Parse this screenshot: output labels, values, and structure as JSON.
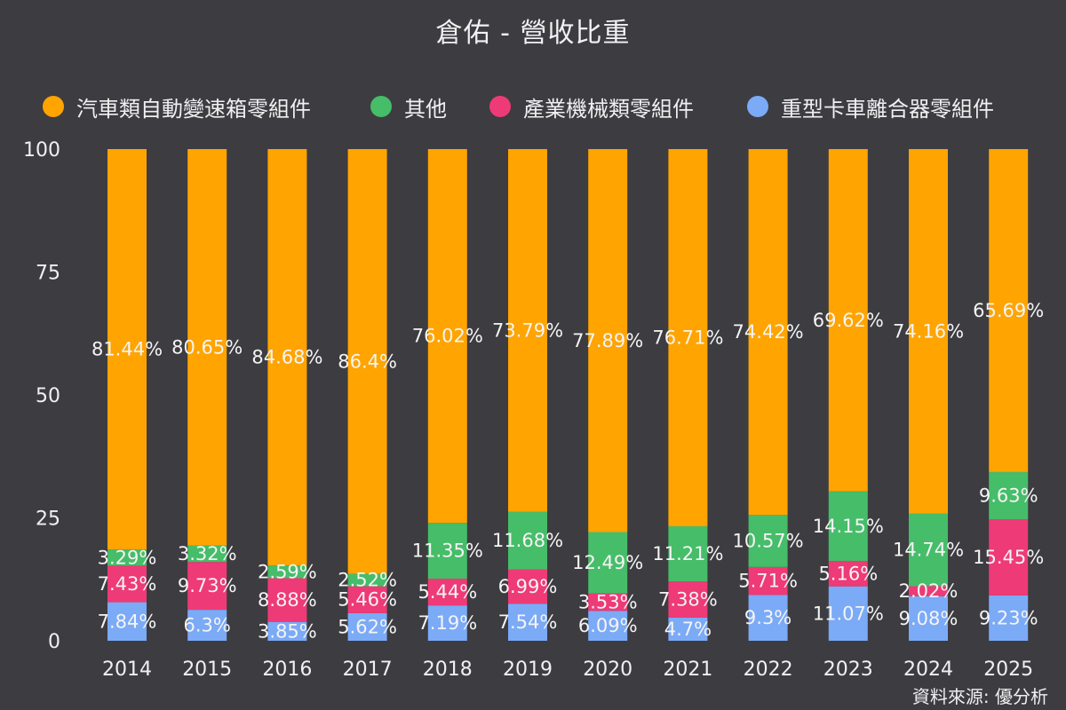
{
  "chart_data": {
    "type": "bar",
    "stacked": true,
    "title": "倉佑 - 營收比重",
    "xlabel": "",
    "ylabel": "",
    "ylim": [
      0,
      100
    ],
    "yticks": [
      0,
      25,
      50,
      75,
      100
    ],
    "grid": false,
    "legend_position": "top",
    "categories": [
      "2014",
      "2015",
      "2016",
      "2017",
      "2018",
      "2019",
      "2020",
      "2021",
      "2022",
      "2023",
      "2024",
      "2025"
    ],
    "series": [
      {
        "name": "重型卡車離合器零組件",
        "color": "#7baaf7",
        "values": [
          7.84,
          6.3,
          3.85,
          5.62,
          7.19,
          7.54,
          6.09,
          4.7,
          9.3,
          11.07,
          9.08,
          9.23
        ],
        "labels": [
          "7.84%",
          "6.3%",
          "3.85%",
          "5.62%",
          "7.19%",
          "7.54%",
          "6.09%",
          "4.7%",
          "9.3%",
          "11.07%",
          "9.08%",
          "9.23%"
        ]
      },
      {
        "name": "產業機械類零組件",
        "color": "#ee3a76",
        "values": [
          7.43,
          9.73,
          8.88,
          5.46,
          5.44,
          6.99,
          3.53,
          7.38,
          5.71,
          5.16,
          2.02,
          15.45
        ],
        "labels": [
          "7.43%",
          "9.73%",
          "8.88%",
          "5.46%",
          "5.44%",
          "6.99%",
          "3.53%",
          "7.38%",
          "5.71%",
          "5.16%",
          "2.02%",
          "15.45%"
        ]
      },
      {
        "name": "其他",
        "color": "#46bd69",
        "values": [
          3.29,
          3.32,
          2.59,
          2.52,
          11.35,
          11.68,
          12.49,
          11.21,
          10.57,
          14.15,
          14.74,
          9.63
        ],
        "labels": [
          "3.29%",
          "3.32%",
          "2.59%",
          "2.52%",
          "11.35%",
          "11.68%",
          "12.49%",
          "11.21%",
          "10.57%",
          "14.15%",
          "14.74%",
          "9.63%"
        ]
      },
      {
        "name": "汽車類自動變速箱零組件",
        "color": "#ffa400",
        "values": [
          81.44,
          80.65,
          84.68,
          86.4,
          76.02,
          73.79,
          77.89,
          76.71,
          74.42,
          69.62,
          74.16,
          65.69
        ],
        "labels": [
          "81.44%",
          "80.65%",
          "84.68%",
          "86.4%",
          "76.02%",
          "73.79%",
          "77.89%",
          "76.71%",
          "74.42%",
          "69.62%",
          "74.16%",
          "65.69%"
        ]
      }
    ],
    "legend_order": [
      "汽車類自動變速箱零組件",
      "其他",
      "產業機械類零組件",
      "重型卡車離合器零組件"
    ]
  },
  "legend": {
    "items": [
      {
        "label": "汽車類自動變速箱零組件",
        "color": "#ffa400"
      },
      {
        "label": "其他",
        "color": "#46bd69"
      },
      {
        "label": "產業機械類零組件",
        "color": "#ee3a76"
      },
      {
        "label": "重型卡車離合器零組件",
        "color": "#7baaf7"
      }
    ]
  },
  "source": "資料來源: 優分析",
  "colors": {
    "background": "#3d3c41",
    "text": "#f0f0f0"
  }
}
